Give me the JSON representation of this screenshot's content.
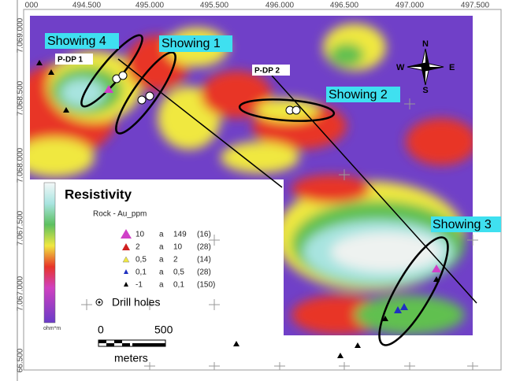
{
  "map": {
    "x_labels": [
      "000",
      "494.500",
      "495.000",
      "495.500",
      "496.000",
      "496.500",
      "497.000",
      "497.500"
    ],
    "y_labels": [
      "7.069.000",
      "7.068.500",
      "7.068.000",
      "7.067.500",
      "7.067.000",
      "66.500"
    ],
    "showings": [
      "Showing 4",
      "Showing 1",
      "Showing 2",
      "Showing 3"
    ],
    "profiles": [
      "P-DP 1",
      "P-DP 2"
    ],
    "compass": {
      "north": "N",
      "south": "S",
      "east": "E",
      "west": "W"
    },
    "legend": {
      "title": "Resistivity",
      "unit": "ohm*m",
      "rock_title": "Rock - Au_ppm",
      "rows": [
        [
          "10",
          "a",
          "149",
          "(16)"
        ],
        [
          "2",
          "a",
          "10",
          "(28)"
        ],
        [
          "0,5",
          "a",
          "2",
          "(14)"
        ],
        [
          "0,1",
          "a",
          "0,5",
          "(28)"
        ],
        [
          "-1",
          "a",
          "0,1",
          "(150)"
        ]
      ],
      "drill_holes": "Drill holes",
      "scale_start": "0",
      "scale_end": "500",
      "scale_unit": "meters"
    }
  }
}
